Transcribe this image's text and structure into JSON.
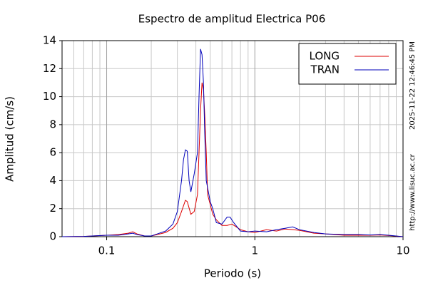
{
  "chart_data": {
    "type": "line",
    "title": "Espectro de amplitud Electrica P06",
    "x_label": "Periodo (s)",
    "y_label": "Amplitud (cm/s)",
    "timestamp": "2025-11-22 12:46:45 PM",
    "source": "http://www.lisuc.ac.cr",
    "x_scale": "log",
    "grid": true,
    "legend": "upper right",
    "xlim": [
      0.05,
      10
    ],
    "xticks": [
      0.1,
      1,
      10
    ],
    "ylim": [
      0,
      14
    ],
    "yticks": [
      0,
      2,
      4,
      6,
      8,
      10,
      12,
      14
    ],
    "series": [
      {
        "name": "LONG",
        "color": "#dd0000",
        "x": [
          0.05,
          0.07,
          0.08,
          0.1,
          0.12,
          0.14,
          0.15,
          0.16,
          0.18,
          0.2,
          0.22,
          0.25,
          0.28,
          0.3,
          0.32,
          0.34,
          0.35,
          0.37,
          0.39,
          0.41,
          0.42,
          0.43,
          0.44,
          0.45,
          0.46,
          0.47,
          0.48,
          0.5,
          0.52,
          0.55,
          0.6,
          0.65,
          0.7,
          0.8,
          0.9,
          1.0,
          1.1,
          1.2,
          1.4,
          1.6,
          1.8,
          2.0,
          2.5,
          3,
          4,
          5,
          6,
          7,
          8,
          10
        ],
        "values": [
          0,
          0.02,
          0.05,
          0.1,
          0.15,
          0.25,
          0.35,
          0.2,
          0.05,
          0.05,
          0.15,
          0.3,
          0.6,
          1.0,
          1.8,
          2.6,
          2.5,
          1.6,
          1.8,
          3.0,
          6.0,
          9.0,
          11.0,
          10.5,
          8.5,
          6.0,
          3.0,
          2.3,
          1.6,
          1.2,
          0.8,
          0.8,
          0.9,
          0.5,
          0.35,
          0.3,
          0.4,
          0.5,
          0.4,
          0.55,
          0.5,
          0.45,
          0.25,
          0.2,
          0.1,
          0.1,
          0.1,
          0.12,
          0.08,
          0
        ]
      },
      {
        "name": "TRAN",
        "color": "#0000bb",
        "x": [
          0.05,
          0.07,
          0.08,
          0.1,
          0.12,
          0.14,
          0.15,
          0.16,
          0.18,
          0.2,
          0.22,
          0.25,
          0.28,
          0.3,
          0.32,
          0.33,
          0.34,
          0.35,
          0.36,
          0.37,
          0.39,
          0.41,
          0.42,
          0.43,
          0.44,
          0.45,
          0.46,
          0.47,
          0.5,
          0.52,
          0.55,
          0.6,
          0.65,
          0.68,
          0.72,
          0.8,
          0.9,
          1.0,
          1.2,
          1.4,
          1.6,
          1.8,
          2.0,
          2.5,
          3,
          4,
          5,
          6,
          7,
          8,
          10
        ],
        "values": [
          0,
          0.02,
          0.05,
          0.1,
          0.1,
          0.2,
          0.25,
          0.15,
          0.05,
          0.05,
          0.2,
          0.4,
          0.9,
          1.8,
          4.0,
          5.5,
          6.2,
          6.1,
          4.0,
          3.2,
          4.5,
          6.0,
          10.0,
          13.4,
          13.0,
          11.0,
          7.0,
          4.0,
          2.5,
          2.0,
          1.0,
          0.9,
          1.4,
          1.4,
          1.0,
          0.4,
          0.35,
          0.4,
          0.35,
          0.5,
          0.6,
          0.7,
          0.5,
          0.3,
          0.2,
          0.15,
          0.15,
          0.12,
          0.15,
          0.1,
          0
        ]
      }
    ]
  }
}
